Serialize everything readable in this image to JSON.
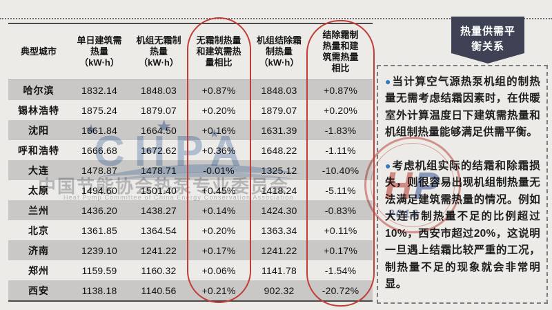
{
  "table": {
    "headers": [
      "典型城市",
      "单日建筑需\n热量\n（kW·h）",
      "机组无霜制\n热量\n（kW·h）",
      "无霜制热量\n和建筑需热\n量相比",
      "机组结除霜\n制热量\n（kW·h）",
      "结除霜制\n热量和建\n筑需热量\n相比"
    ],
    "rows": [
      [
        "哈尔滨",
        "1832.14",
        "1848.03",
        "+0.87%",
        "1848.03",
        "+0.87%"
      ],
      [
        "锡林浩特",
        "1875.24",
        "1879.07",
        "+0.20%",
        "1879.07",
        "+0.20%"
      ],
      [
        "沈阳",
        "1661.84",
        "1664.50",
        "+0.16%",
        "1631.39",
        "-1.83%"
      ],
      [
        "呼和浩特",
        "1666.68",
        "1672.62",
        "+0.36%",
        "1648.22",
        "-1.11%"
      ],
      [
        "大连",
        "1478.87",
        "1478.71",
        "-0.01%",
        "1325.12",
        "-10.40%"
      ],
      [
        "太原",
        "1494.60",
        "1501.40",
        "+0.45%",
        "1418.24",
        "-5.11%"
      ],
      [
        "兰州",
        "1436.20",
        "1438.27",
        "+0.14%",
        "1424.30",
        "-0.83%"
      ],
      [
        "北京",
        "1361.85",
        "1364.54",
        "+0.20%",
        "1363.34",
        "+0.11%"
      ],
      [
        "济南",
        "1239.10",
        "1241.22",
        "+0.17%",
        "1241.22",
        "+0.17%"
      ],
      [
        "郑州",
        "1159.59",
        "1160.32",
        "+0.06%",
        "1141.78",
        "-1.54%"
      ],
      [
        "西安",
        "1138.18",
        "1140.56",
        "+0.21%",
        "902.32",
        "-20.72%"
      ]
    ]
  },
  "banner": {
    "title": "热量供需平\n衡关系"
  },
  "notes": {
    "bullet_icon": "●",
    "p1": "当计算空气源热泵机组的制热量无需考虑结霜因素时，在供暖室外计算温度日下建筑需热量和机组制热量能够满足供需平衡。",
    "p2": "考虑机组实际的结霜和除霜损失，则很容易出现机组制热量无法满足建筑需热量的情况。例如大连市制热量不足的比例超过10%，西安市超过20%，这说明一旦遇上结霜比较严重的工况，制热量不足的现象就会非常明显。"
  },
  "watermarks": {
    "chpa": {
      "letters": "CHPA",
      "star_icon": "★",
      "cn": "中国节能协会热泵专业委员会",
      "en": "Heat Pump Committee of China Energy Conservation Association"
    },
    "hp": {
      "h": "H",
      "p": "P",
      "year": "2018"
    }
  },
  "colors": {
    "accent_red": "#c23c38",
    "banner_navy": "#3e4254",
    "bullet_blue": "#2e78bf",
    "row_gray": "#c9c8c6",
    "background": "#edebe7"
  }
}
